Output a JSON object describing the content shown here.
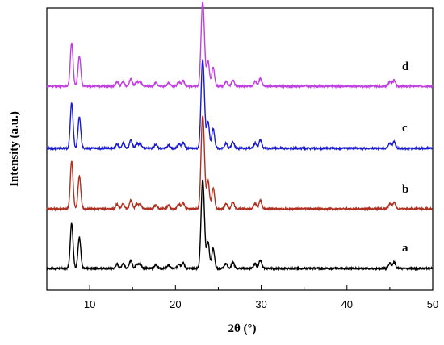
{
  "chart_data": {
    "type": "line",
    "xlabel": "2θ (°)",
    "ylabel": "Intensity (a.u.)",
    "xlim": [
      5,
      50
    ],
    "x_ticks": [
      10,
      20,
      30,
      40,
      50
    ],
    "y_ticks_shown": false,
    "grid": false,
    "legend": "none",
    "peaks_2theta": [
      7.9,
      8.8,
      13.2,
      13.9,
      14.8,
      15.5,
      15.9,
      17.7,
      19.2,
      20.4,
      20.9,
      23.1,
      23.3,
      23.8,
      24.4,
      25.9,
      26.7,
      29.3,
      29.9,
      45.0,
      45.5
    ],
    "peak_rel_intensity": [
      0.72,
      0.5,
      0.07,
      0.08,
      0.13,
      0.07,
      0.07,
      0.06,
      0.05,
      0.07,
      0.09,
      0.95,
      0.75,
      0.42,
      0.32,
      0.08,
      0.1,
      0.08,
      0.13,
      0.08,
      0.1
    ],
    "series": [
      {
        "name": "a",
        "color": "#000000",
        "scale": 1.0
      },
      {
        "name": "b",
        "color": "#b03020",
        "scale": 1.05
      },
      {
        "name": "c",
        "color": "#1a1ad0",
        "scale": 1.0
      },
      {
        "name": "d",
        "color": "#c040e0",
        "scale": 0.95
      }
    ]
  }
}
